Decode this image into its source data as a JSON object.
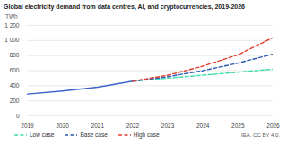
{
  "chart_data": {
    "type": "line",
    "title": "Global electricity demand from data centres, AI, and cryptocurrencies, 2019-2026",
    "y_label": "TWh",
    "source": "IEA. CC BY 4.0.",
    "x": [
      2019,
      2020,
      2021,
      2022,
      2023,
      2024,
      2025,
      2026
    ],
    "xlim": [
      2019,
      2026
    ],
    "xticks": [
      2019,
      2020,
      2021,
      2022,
      2023,
      2024,
      2025,
      2026
    ],
    "ylim": [
      0,
      1200
    ],
    "yticks": [
      0,
      200,
      400,
      600,
      800,
      {
        "value": 1000,
        "label": "1 000"
      },
      {
        "value": 1200,
        "label": "1 200"
      }
    ],
    "grid": true,
    "legend": "bottom",
    "series": [
      {
        "color": "#3b63c9",
        "line_style": "solid",
        "values": [
          290,
          330,
          380,
          460,
          null,
          null,
          null,
          null
        ]
      },
      {
        "name": "Low case",
        "color": "#3fdcae",
        "line_style": "dashed",
        "values": [
          null,
          null,
          null,
          460,
          500,
          540,
          580,
          620
        ]
      },
      {
        "name": "Base case",
        "color": "#2a5bb0",
        "line_style": "dashed",
        "values": [
          null,
          null,
          null,
          460,
          520,
          600,
          700,
          820
        ]
      },
      {
        "name": "High case",
        "color": "#e63b2e",
        "line_style": "dashed",
        "values": [
          null,
          null,
          null,
          460,
          540,
          660,
          810,
          1040
        ]
      }
    ]
  }
}
